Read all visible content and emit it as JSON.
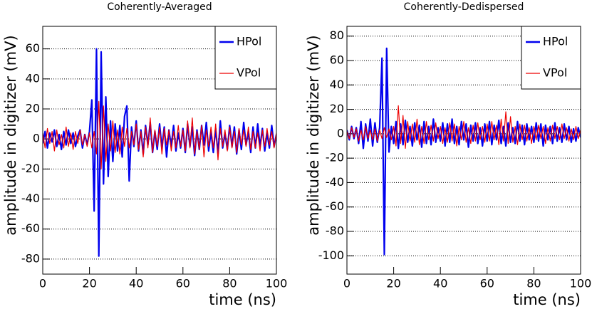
{
  "chart_data": [
    {
      "type": "line",
      "title": "Coherently-Averaged",
      "xlabel": "time (ns)",
      "ylabel": "amplitude in digitizer (mV)",
      "x": [
        0,
        1,
        2,
        3,
        4,
        5,
        6,
        7,
        8,
        9,
        10,
        11,
        12,
        13,
        14,
        15,
        16,
        17,
        18,
        19,
        20,
        21,
        22,
        23,
        24,
        25,
        26,
        27,
        28,
        29,
        30,
        31,
        32,
        33,
        34,
        35,
        36,
        37,
        38,
        39,
        40,
        41,
        42,
        43,
        44,
        45,
        46,
        47,
        48,
        49,
        50,
        51,
        52,
        53,
        54,
        55,
        56,
        57,
        58,
        59,
        60,
        61,
        62,
        63,
        64,
        65,
        66,
        67,
        68,
        69,
        70,
        71,
        72,
        73,
        74,
        75,
        76,
        77,
        78,
        79,
        80,
        81,
        82,
        83,
        84,
        85,
        86,
        87,
        88,
        89,
        90,
        91,
        92,
        93,
        94,
        95,
        96,
        97,
        98,
        99,
        100
      ],
      "series": [
        {
          "name": "HPol",
          "color": "#0000ee",
          "values": [
            -3,
            5,
            -6,
            4,
            -2,
            6,
            -5,
            3,
            -7,
            5,
            -4,
            6,
            -3,
            4,
            -5,
            2,
            6,
            -6,
            3,
            -4,
            5,
            26,
            -48,
            60,
            -78,
            58,
            -30,
            28,
            -25,
            12,
            -15,
            10,
            -8,
            9,
            -12,
            15,
            22,
            -28,
            8,
            -5,
            12,
            -8,
            6,
            -10,
            9,
            -4,
            11,
            -9,
            5,
            -7,
            10,
            -6,
            8,
            -12,
            6,
            -5,
            9,
            -8,
            4,
            -6,
            7,
            -9,
            10,
            -5,
            8,
            -11,
            6,
            -7,
            9,
            -4,
            11,
            -8,
            5,
            -9,
            7,
            -10,
            12,
            -6,
            4,
            -7,
            9,
            -5,
            8,
            -10,
            6,
            -7,
            11,
            -4,
            5,
            -9,
            8,
            -6,
            10,
            -5,
            7,
            -8,
            4,
            -6,
            9,
            -5,
            3
          ]
        },
        {
          "name": "VPol",
          "color": "#ee0000",
          "values": [
            4,
            -6,
            7,
            -3,
            5,
            -8,
            6,
            -4,
            3,
            -6,
            8,
            -5,
            4,
            -7,
            5,
            -3,
            6,
            -4,
            3,
            -5,
            4,
            -6,
            5,
            -10,
            25,
            -20,
            22,
            -15,
            10,
            -8,
            12,
            -9,
            6,
            -10,
            8,
            -5,
            7,
            -6,
            5,
            -4,
            10,
            -7,
            5,
            -12,
            8,
            -6,
            14,
            -9,
            6,
            -5,
            8,
            -10,
            7,
            -4,
            6,
            -8,
            5,
            -6,
            9,
            -5,
            6,
            -8,
            12,
            -6,
            14,
            -10,
            5,
            -7,
            9,
            -12,
            6,
            -5,
            8,
            -6,
            10,
            -14,
            7,
            -5,
            6,
            -8,
            8,
            -6,
            5,
            -9,
            7,
            -4,
            6,
            -5,
            8,
            -7,
            5,
            -6,
            4,
            -8,
            6,
            -5,
            7,
            -4,
            5,
            -6,
            4
          ]
        }
      ],
      "xlim": [
        0,
        100
      ],
      "ylim": [
        -90,
        75
      ],
      "xticks": [
        0,
        20,
        40,
        60,
        80,
        100
      ],
      "yticks": [
        -80,
        -60,
        -40,
        -20,
        0,
        20,
        40,
        60
      ],
      "grid": true,
      "legend": "top-right"
    },
    {
      "type": "line",
      "title": "Coherently-Dedispersed",
      "xlabel": "time (ns)",
      "ylabel": "amplitude in digitizer (mV)",
      "x": [
        0,
        1,
        2,
        3,
        4,
        5,
        6,
        7,
        8,
        9,
        10,
        11,
        12,
        13,
        14,
        15,
        16,
        17,
        18,
        19,
        20,
        21,
        22,
        23,
        24,
        25,
        26,
        27,
        28,
        29,
        30,
        31,
        32,
        33,
        34,
        35,
        36,
        37,
        38,
        39,
        40,
        41,
        42,
        43,
        44,
        45,
        46,
        47,
        48,
        49,
        50,
        51,
        52,
        53,
        54,
        55,
        56,
        57,
        58,
        59,
        60,
        61,
        62,
        63,
        64,
        65,
        66,
        67,
        68,
        69,
        70,
        71,
        72,
        73,
        74,
        75,
        76,
        77,
        78,
        79,
        80,
        81,
        82,
        83,
        84,
        85,
        86,
        87,
        88,
        89,
        90,
        91,
        92,
        93,
        94,
        95,
        96,
        97,
        98,
        99,
        100
      ],
      "series": [
        {
          "name": "HPol",
          "color": "#0000ee",
          "values": [
            3,
            -5,
            6,
            -4,
            5,
            -8,
            10,
            -12,
            8,
            -6,
            12,
            -10,
            9,
            -7,
            5,
            62,
            -99,
            70,
            -15,
            6,
            -8,
            10,
            -12,
            8,
            -9,
            11,
            -7,
            6,
            -10,
            9,
            -5,
            7,
            -11,
            10,
            -8,
            6,
            -9,
            12,
            -7,
            5,
            -6,
            9,
            -10,
            8,
            -7,
            12,
            -8,
            6,
            -9,
            10,
            -5,
            8,
            -11,
            7,
            -6,
            9,
            -8,
            5,
            -10,
            8,
            -6,
            10,
            -9,
            7,
            -5,
            11,
            -8,
            6,
            -10,
            9,
            -7,
            5,
            -8,
            10,
            -6,
            7,
            -9,
            8,
            -5,
            6,
            -7,
            9,
            -6,
            8,
            -10,
            7,
            -5,
            6,
            -8,
            9,
            -6,
            5,
            -7,
            8,
            -5,
            6,
            -7,
            4,
            -6,
            5,
            -3
          ]
        },
        {
          "name": "VPol",
          "color": "#ee0000",
          "values": [
            2,
            -4,
            5,
            -3,
            4,
            -6,
            3,
            -5,
            6,
            -4,
            3,
            -5,
            4,
            -6,
            3,
            -4,
            5,
            -3,
            4,
            -5,
            6,
            -10,
            23,
            -8,
            15,
            -12,
            10,
            -6,
            8,
            -7,
            12,
            -9,
            6,
            -8,
            10,
            -5,
            7,
            -6,
            9,
            -4,
            6,
            -8,
            5,
            -7,
            9,
            -6,
            8,
            -10,
            6,
            -5,
            10,
            -7,
            5,
            -8,
            7,
            -6,
            9,
            -5,
            6,
            -7,
            8,
            -6,
            10,
            -5,
            7,
            -9,
            12,
            -6,
            18,
            -8,
            14,
            -7,
            6,
            -9,
            8,
            -5,
            7,
            -6,
            5,
            -8,
            6,
            -5,
            7,
            -4,
            6,
            -8,
            5,
            -6,
            7,
            -4,
            6,
            -5,
            8,
            -4,
            5,
            -6,
            4,
            -5,
            6,
            -4,
            3
          ]
        }
      ],
      "xlim": [
        0,
        100
      ],
      "ylim": [
        -115,
        88
      ],
      "xticks": [
        0,
        20,
        40,
        60,
        80,
        100
      ],
      "yticks": [
        -100,
        -80,
        -60,
        -40,
        -20,
        0,
        20,
        40,
        60,
        80
      ],
      "grid": true,
      "legend": "top-right"
    }
  ]
}
